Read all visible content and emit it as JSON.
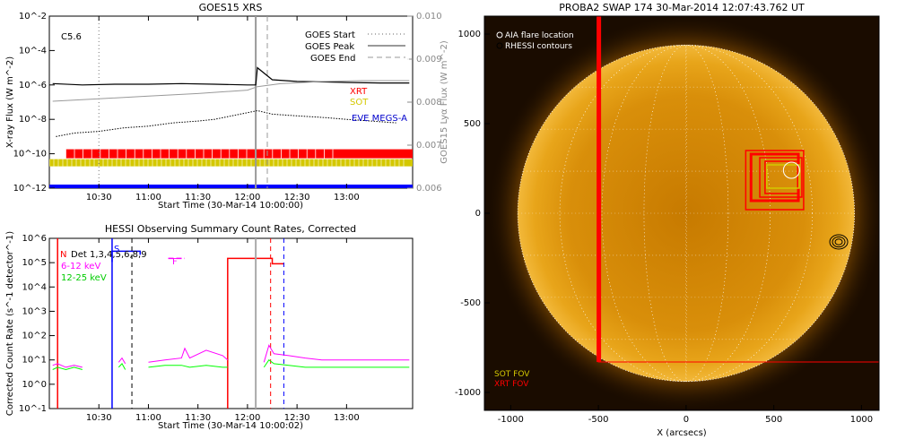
{
  "chart_data": [
    {
      "type": "line",
      "title": "GOES15 XRS",
      "xlabel": "Start Time (30-Mar-14 10:00:00)",
      "ylabel": "X-ray Flux (W m^-2)",
      "y2label": "GOES15 Lyα Flux (W m^-2)",
      "flare_class": "C5.6",
      "xlim": [
        "10:00",
        "13:40"
      ],
      "xticks": [
        "10:30",
        "11:00",
        "11:30",
        "12:00",
        "12:30",
        "13:00"
      ],
      "ylim": [
        1e-12,
        0.01
      ],
      "yscale": "log",
      "yticks": [
        "10^-12",
        "10^-10",
        "10^-8",
        "10^-6",
        "10^-4",
        "10^-2"
      ],
      "y2lim": [
        0.006,
        0.01
      ],
      "y2ticks": [
        "0.006",
        "0.007",
        "0.008",
        "0.009",
        "0.010"
      ],
      "legend": [
        "GOES Start",
        "GOES Peak",
        "GOES End"
      ],
      "legend_position": "top-right",
      "vlines": {
        "start": "10:30",
        "peak": "12:05",
        "end": "12:12"
      },
      "series": [
        {
          "x": [
            "10:02",
            "10:20",
            "10:40",
            "11:00",
            "11:20",
            "11:40",
            "12:00",
            "12:05",
            "12:06",
            "12:15",
            "12:30",
            "12:45",
            "13:00",
            "13:20",
            "13:38"
          ],
          "y": [
            1.2e-06,
            1e-06,
            1.1e-06,
            1.1e-06,
            1.2e-06,
            1.1e-06,
            1e-06,
            1e-06,
            1e-05,
            2e-06,
            1.6e-06,
            1.5e-06,
            1.4e-06,
            1.3e-06,
            1.3e-06
          ]
        },
        {
          "x": [
            "10:02",
            "10:30",
            "11:00",
            "11:30",
            "12:00",
            "12:06",
            "12:20",
            "12:45",
            "13:10",
            "13:38"
          ],
          "y": [
            0.00802,
            0.00808,
            0.00814,
            0.0082,
            0.00828,
            0.00836,
            0.00843,
            0.00848,
            0.0085,
            0.0085
          ]
        },
        {
          "x": [
            "10:04",
            "10:15",
            "10:30",
            "10:45",
            "11:00",
            "11:15",
            "11:30",
            "11:40",
            "12:06",
            "12:15",
            "12:30",
            "12:45",
            "13:00",
            "13:15",
            "13:30"
          ],
          "y": [
            1e-09,
            1.6e-09,
            2e-09,
            3.2e-09,
            4e-09,
            6.3e-09,
            8e-09,
            1e-08,
            3.2e-08,
            2e-08,
            1.6e-08,
            1.3e-08,
            1e-08,
            8e-09,
            6.3e-09
          ]
        }
      ],
      "instrument_bars": [
        {
          "name": "XRT",
          "color": "#ff0000",
          "start": "10:10",
          "end": "13:40"
        },
        {
          "name": "SOT",
          "color": "#d4c800",
          "start": "10:00",
          "end": "13:40"
        },
        {
          "name": "EVE MEGS-A",
          "color": "#0000ff",
          "start": "10:00",
          "end": "13:40"
        }
      ]
    },
    {
      "type": "line",
      "title": "HESSI Observing Summary Count Rates, Corrected",
      "xlabel": "Start Time (30-Mar-14 10:00:02)",
      "ylabel": "Corrected Count Rate (s^-1 detector^-1)",
      "xlim": [
        "10:00",
        "13:40"
      ],
      "xticks": [
        "10:30",
        "11:00",
        "11:30",
        "12:00",
        "12:30",
        "13:00"
      ],
      "ylim": [
        0.1,
        1000000.0
      ],
      "yscale": "log",
      "yticks": [
        "10^-1",
        "10^0",
        "10^1",
        "10^2",
        "10^3",
        "10^4",
        "10^5",
        "10^6"
      ],
      "legend_title": "Det 1,3,4,5,6,8,9",
      "legend_position": "top-left",
      "flags": [
        {
          "label": "N",
          "color": "#ff0000"
        },
        {
          "label": "S",
          "color": "#0000ff"
        },
        {
          "label": "F",
          "color": "#ff00ff"
        }
      ],
      "series": [
        {
          "name": "6-12 keV",
          "color": "#ff00ff",
          "segments": [
            {
              "x": [
                "10:02",
                "10:05",
                "10:10",
                "10:15",
                "10:20"
              ],
              "y": [
                6,
                7,
                5,
                6,
                5
              ]
            },
            {
              "x": [
                "10:42",
                "10:44",
                "10:46"
              ],
              "y": [
                8,
                12,
                7
              ]
            },
            {
              "x": [
                "11:00",
                "11:10",
                "11:20",
                "11:22",
                "11:25",
                "11:35",
                "11:45",
                "11:48"
              ],
              "y": [
                8,
                10,
                12,
                30,
                12,
                25,
                15,
                10
              ]
            },
            {
              "x": [
                "12:10",
                "12:13",
                "12:16",
                "12:25",
                "12:35",
                "12:45",
                "13:00",
                "13:20",
                "13:38"
              ],
              "y": [
                8,
                40,
                18,
                15,
                12,
                10,
                10,
                10,
                10
              ]
            }
          ]
        },
        {
          "name": "12-25 keV",
          "color": "#00ff00",
          "segments": [
            {
              "x": [
                "10:02",
                "10:05",
                "10:10",
                "10:15",
                "10:20"
              ],
              "y": [
                4,
                5,
                4,
                5,
                4
              ]
            },
            {
              "x": [
                "10:42",
                "10:44",
                "10:46"
              ],
              "y": [
                5,
                7,
                4
              ]
            },
            {
              "x": [
                "11:00",
                "11:10",
                "11:20",
                "11:25",
                "11:35",
                "11:45",
                "11:48"
              ],
              "y": [
                5,
                6,
                6,
                5,
                6,
                5,
                5
              ]
            },
            {
              "x": [
                "12:10",
                "12:13",
                "12:16",
                "12:25",
                "12:35",
                "12:45",
                "13:00",
                "13:20",
                "13:38"
              ],
              "y": [
                5,
                10,
                7,
                6,
                5,
                5,
                5,
                5,
                5
              ]
            }
          ]
        }
      ],
      "attenuator_level": 150000.0
    },
    {
      "type": "scatter",
      "title": "PROBA2 SWAP 174 30-Mar-2014 12:07:43.762 UT",
      "xlabel": "X (arcsecs)",
      "ylabel": "",
      "xlim": [
        -1150,
        1100
      ],
      "ylim": [
        -1100,
        1100
      ],
      "xticks": [
        -1000,
        -500,
        0,
        500,
        1000
      ],
      "yticks": [
        -1000,
        -500,
        0,
        500,
        1000
      ],
      "legend": [
        "AIA flare location",
        "RHESSI contours"
      ],
      "legend_position": "top-left",
      "fov_labels": [
        {
          "name": "SOT FOV",
          "color": "#d4c800"
        },
        {
          "name": "XRT FOV",
          "color": "#ff0000"
        }
      ],
      "xrt_fov": [
        [
          -500,
          -830
        ],
        [
          1100,
          1100
        ]
      ],
      "flare_location": [
        570,
        250
      ],
      "rhessi_contours": [
        870,
        -160
      ],
      "solar_radius": 960
    }
  ]
}
